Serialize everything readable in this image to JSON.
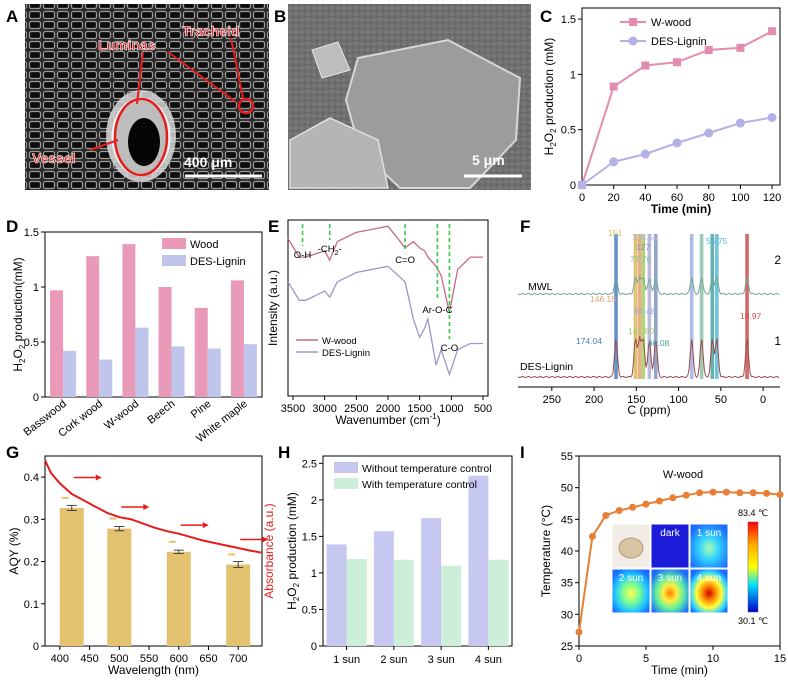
{
  "figure": {
    "panel_letters": [
      "A",
      "B",
      "C",
      "D",
      "E",
      "F",
      "G",
      "H",
      "I"
    ]
  },
  "panel_a": {
    "labels": [
      "Luminas",
      "Tracheid",
      "Vessel"
    ],
    "scale_bar": "400 μm"
  },
  "panel_b": {
    "scale_bar": "5 μm"
  },
  "chart_data": [
    {
      "panel": "C",
      "type": "line",
      "xlabel": "Time (min)",
      "ylabel": "H2O2 production (mM)",
      "xlim": [
        0,
        125
      ],
      "ylim": [
        0,
        1.6
      ],
      "xticks": [
        0,
        20,
        40,
        60,
        80,
        100,
        120
      ],
      "yticks": [
        0.0,
        0.5,
        1.0,
        1.5
      ],
      "legend_position": "top-center",
      "series": [
        {
          "name": "W-wood",
          "color": "#e48bb0",
          "marker": "square",
          "x": [
            0,
            20,
            40,
            60,
            80,
            100,
            120
          ],
          "y": [
            0,
            0.89,
            1.08,
            1.11,
            1.22,
            1.24,
            1.39
          ]
        },
        {
          "name": "DES-Lignin",
          "color": "#b2b2e6",
          "marker": "circle",
          "x": [
            0,
            20,
            40,
            60,
            80,
            100,
            120
          ],
          "y": [
            0,
            0.21,
            0.28,
            0.38,
            0.47,
            0.56,
            0.61
          ]
        }
      ]
    },
    {
      "panel": "D",
      "type": "bar",
      "ylabel": "H2O2 production(mM)",
      "ylim": [
        0,
        1.5
      ],
      "yticks": [
        0.0,
        0.5,
        1.0,
        1.5
      ],
      "categories": [
        "Basswood",
        "Cork wood",
        "W-wood",
        "Beech",
        "Pine",
        "White maple"
      ],
      "legend_position": "top-right",
      "series": [
        {
          "name": "Wood",
          "color": "#e89ab8",
          "values": [
            0.97,
            1.28,
            1.39,
            1.0,
            0.81,
            1.06
          ]
        },
        {
          "name": "DES-Lignin",
          "color": "#c0c5ec",
          "values": [
            0.42,
            0.34,
            0.63,
            0.46,
            0.44,
            0.48
          ]
        }
      ]
    },
    {
      "panel": "E",
      "type": "line",
      "xlabel": "Wavenumber (cm-1)",
      "ylabel": "Intensity (a.u.)",
      "xlim": [
        3500,
        500
      ],
      "xticks": [
        3500,
        3000,
        2500,
        2000,
        1500,
        1000,
        500
      ],
      "legend_position": "bottom-left",
      "annotations": [
        {
          "text": "O-H",
          "x": 3350
        },
        {
          "text": "-CH2-",
          "x": 2920
        },
        {
          "text": "C=O",
          "x": 1730
        },
        {
          "text": "Ar-O-C",
          "x": 1220
        },
        {
          "text": "C-O",
          "x": 1030
        }
      ],
      "series": [
        {
          "name": "W-wood",
          "color": "#c76a87",
          "x": [
            3600,
            3400,
            3300,
            3000,
            2920,
            2800,
            2500,
            2000,
            1730,
            1600,
            1500,
            1420,
            1370,
            1240,
            1160,
            1030,
            900,
            700,
            500
          ],
          "y": [
            0.96,
            0.9,
            0.9,
            0.92,
            0.89,
            0.95,
            0.98,
            1.0,
            0.93,
            0.95,
            0.93,
            0.92,
            0.9,
            0.87,
            0.84,
            0.72,
            0.86,
            0.9,
            0.9
          ]
        },
        {
          "name": "DES-Lignin",
          "color": "#9999c9",
          "x": [
            3600,
            3400,
            3300,
            3000,
            2920,
            2800,
            2500,
            2000,
            1730,
            1600,
            1500,
            1420,
            1370,
            1240,
            1160,
            1030,
            900,
            700,
            500
          ],
          "y": [
            0.82,
            0.76,
            0.76,
            0.79,
            0.77,
            0.82,
            0.85,
            0.87,
            0.82,
            0.7,
            0.64,
            0.67,
            0.7,
            0.55,
            0.6,
            0.52,
            0.6,
            0.62,
            0.62
          ]
        }
      ]
    },
    {
      "panel": "F",
      "type": "line",
      "xlabel": "C (ppm)",
      "xlim": [
        290,
        -20
      ],
      "xticks": [
        250,
        200,
        150,
        100,
        50,
        0
      ],
      "series_labels": [
        "MWL",
        "DES-Lignin"
      ],
      "trace_numbers": [
        "2",
        "1"
      ],
      "peaks": [
        {
          "label": "174.04",
          "ppm": 174.04,
          "color": "#4a7fbf"
        },
        {
          "label": "151",
          "ppm": 151,
          "color": "#d8b85a"
        },
        {
          "label": "146.18",
          "ppm": 146.18,
          "color": "#e6a070"
        },
        {
          "label": "141.80",
          "ppm": 141.8,
          "color": "#a6cc66"
        },
        {
          "label": "134.58",
          "ppm": 134.58,
          "color": "#b0b0d8"
        },
        {
          "label": "127",
          "ppm": 127,
          "color": "#7f94c2"
        },
        {
          "label": "84.48",
          "ppm": 84.48,
          "color": "#9cb0e0"
        },
        {
          "label": "72.76",
          "ppm": 72.76,
          "color": "#8cc0a8"
        },
        {
          "label": "60.08",
          "ppm": 60.08,
          "color": "#4aa29e"
        },
        {
          "label": "54.75",
          "ppm": 54.75,
          "color": "#5ab8d8"
        },
        {
          "label": "18.97",
          "ppm": 18.97,
          "color": "#c85050"
        }
      ]
    },
    {
      "panel": "G",
      "type": "bar",
      "xlabel": "Wavelength (nm)",
      "ylabel": "AQY (%)",
      "ylabel_right": "Absorbance (a.u.)",
      "xlim": [
        375,
        740
      ],
      "ylim": [
        0.0,
        0.45
      ],
      "xticks": [
        400,
        450,
        500,
        550,
        600,
        650,
        700
      ],
      "yticks": [
        0.0,
        0.1,
        0.2,
        0.3,
        0.4
      ],
      "bar_color": "#e3c26f",
      "categories": [
        420,
        500,
        600,
        700
      ],
      "values": [
        0.327,
        0.278,
        0.223,
        0.193
      ],
      "errors": [
        0.006,
        0.005,
        0.004,
        0.007
      ],
      "absorbance_color": "#e81b1b",
      "absorbance": {
        "x": [
          375,
          385,
          400,
          420,
          440,
          460,
          480,
          500,
          520,
          540,
          560,
          580,
          600,
          620,
          640,
          660,
          680,
          700,
          720,
          740
        ],
        "y": [
          0.44,
          0.41,
          0.385,
          0.36,
          0.345,
          0.33,
          0.315,
          0.305,
          0.3,
          0.29,
          0.28,
          0.272,
          0.266,
          0.258,
          0.25,
          0.244,
          0.238,
          0.232,
          0.226,
          0.221
        ]
      }
    },
    {
      "panel": "H",
      "type": "bar",
      "ylabel": "H2O2 production (mM)",
      "ylim": [
        0,
        2.6
      ],
      "yticks": [
        0.0,
        0.5,
        1.0,
        1.5,
        2.0,
        2.5
      ],
      "categories": [
        "1 sun",
        "2 sun",
        "3 sun",
        "4 sun"
      ],
      "legend_position": "top",
      "series": [
        {
          "name": "Without temperature control",
          "color": "#c6c8f2",
          "values": [
            1.39,
            1.57,
            1.75,
            2.33
          ]
        },
        {
          "name": "With temperature control",
          "color": "#cdeed8",
          "values": [
            1.19,
            1.18,
            1.1,
            1.18
          ]
        }
      ]
    },
    {
      "panel": "I",
      "type": "line",
      "title": "W-wood",
      "xlabel": "Time (min)",
      "ylabel": "Temperature (°C)",
      "xlim": [
        0,
        15
      ],
      "ylim": [
        25,
        55
      ],
      "xticks": [
        0,
        5,
        10,
        15
      ],
      "yticks": [
        25,
        30,
        35,
        40,
        45,
        50,
        55
      ],
      "color": "#e87f35",
      "x": [
        0,
        1,
        2,
        3,
        4,
        5,
        6,
        7,
        8,
        9,
        10,
        11,
        12,
        13,
        14,
        15
      ],
      "y": [
        27.2,
        42.3,
        45.6,
        46.4,
        46.9,
        47.4,
        47.9,
        48.4,
        48.8,
        49.2,
        49.3,
        49.3,
        49.2,
        49.2,
        49.1,
        48.9
      ],
      "inset": {
        "tiles": [
          "dark",
          "1 sun",
          "2 sun",
          "3 sun",
          "4 sun"
        ],
        "colorbar_max": "83.4 ℃",
        "colorbar_min": "30.1 ℃"
      }
    }
  ]
}
